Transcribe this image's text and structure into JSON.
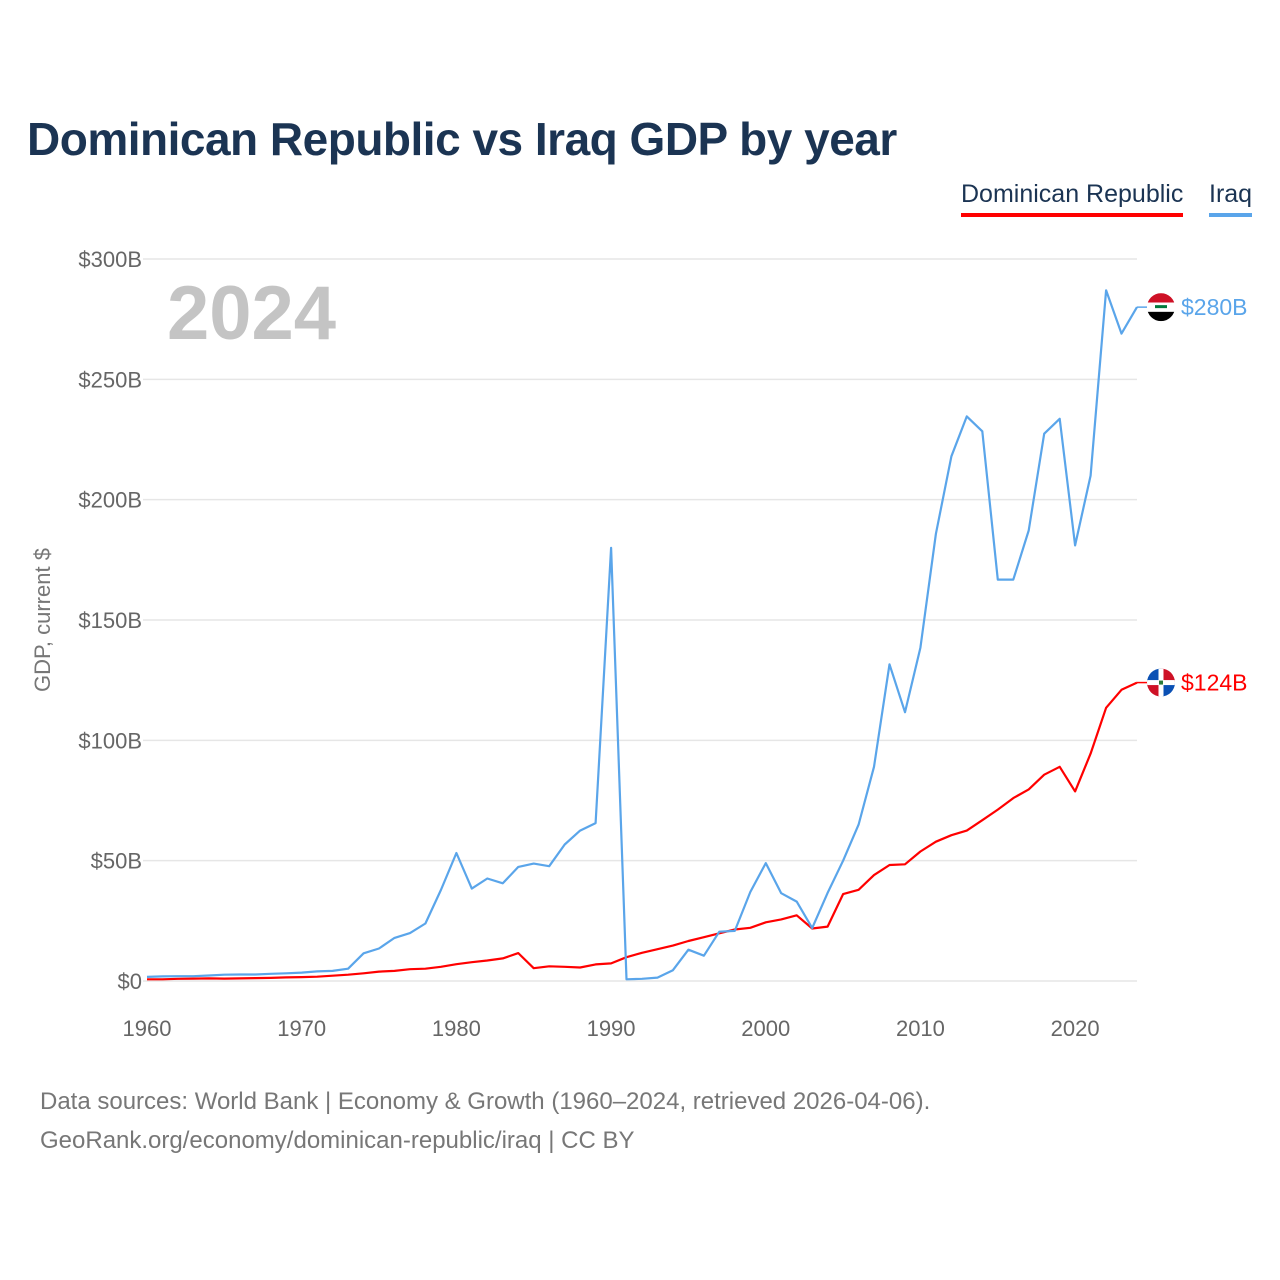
{
  "chart_data": {
    "type": "line",
    "title": "Dominican Republic vs Iraq GDP by year",
    "xlabel": "",
    "ylabel": "GDP, current $",
    "xlim": [
      1960,
      2024
    ],
    "ylim": [
      0,
      300
    ],
    "x_ticks": [
      1960,
      1970,
      1980,
      1990,
      2000,
      2010,
      2020
    ],
    "x_tick_labels": [
      "1960",
      "1970",
      "1980",
      "1990",
      "2000",
      "2010",
      "2020"
    ],
    "y_ticks": [
      0,
      50,
      100,
      150,
      200,
      250,
      300
    ],
    "y_tick_labels": [
      "$0",
      "$50B",
      "$100B",
      "$150B",
      "$200B",
      "$250B",
      "$300B"
    ],
    "grid": true,
    "legend_position": "top-right",
    "year_watermark": "2024",
    "x_start": 1960,
    "series": [
      {
        "name": "Dominican Republic",
        "color": "#ff0000",
        "end_label": "$124B",
        "values": [
          0.7,
          0.7,
          0.9,
          1.0,
          1.1,
          1.0,
          1.1,
          1.2,
          1.3,
          1.5,
          1.6,
          1.8,
          2.2,
          2.6,
          3.2,
          3.9,
          4.2,
          4.9,
          5.1,
          5.9,
          7.0,
          7.8,
          8.5,
          9.4,
          11.6,
          5.3,
          6.1,
          5.9,
          5.6,
          6.9,
          7.3,
          9.9,
          11.7,
          13.2,
          14.7,
          16.6,
          18.2,
          19.8,
          21.4,
          22.1,
          24.4,
          25.6,
          27.3,
          21.8,
          22.6,
          36.1,
          37.9,
          44.0,
          48.2,
          48.5,
          53.8,
          57.9,
          60.6,
          62.5,
          66.8,
          71.2,
          76.0,
          79.6,
          85.7,
          89.0,
          78.8,
          94.5,
          113.5,
          121.0,
          124.0
        ]
      },
      {
        "name": "Iraq",
        "color": "#5aa5ea",
        "end_label": "$280B",
        "values": [
          1.7,
          1.9,
          2.0,
          2.0,
          2.3,
          2.6,
          2.7,
          2.7,
          3.0,
          3.2,
          3.5,
          4.0,
          4.2,
          5.1,
          11.5,
          13.5,
          17.9,
          19.9,
          23.9,
          37.8,
          53.2,
          38.4,
          42.6,
          40.6,
          47.4,
          48.8,
          47.7,
          56.7,
          62.5,
          65.6,
          180.0,
          0.7,
          0.9,
          1.4,
          4.5,
          13.0,
          10.5,
          20.5,
          20.8,
          37.0,
          49.0,
          36.5,
          33.0,
          22.0,
          36.6,
          50.0,
          65.0,
          89.0,
          131.6,
          111.7,
          138.5,
          185.8,
          218.0,
          234.6,
          228.4,
          166.8,
          166.8,
          187.2,
          227.4,
          233.6,
          181.0,
          210.0,
          287.0,
          269.0,
          280.0
        ]
      }
    ]
  },
  "footer": {
    "line1": "Data sources: World Bank | Economy & Growth (1960–2024, retrieved 2026-04-06).",
    "line2": "GeoRank.org/economy/dominican-republic/iraq | CC BY"
  }
}
